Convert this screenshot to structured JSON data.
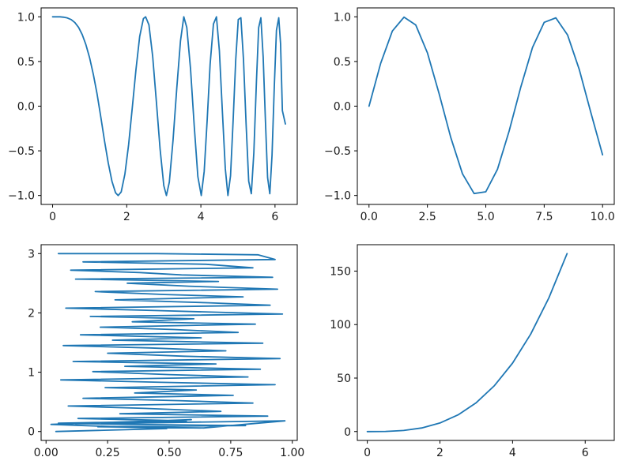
{
  "chart_data": [
    {
      "type": "line",
      "title": "",
      "xlabel": "",
      "ylabel": "",
      "grid": false,
      "xlim": [
        -0.31,
        6.6
      ],
      "ylim": [
        -1.1,
        1.1
      ],
      "xticks": [
        0,
        2,
        4,
        6
      ],
      "xtick_labels": [
        "0",
        "2",
        "4",
        "6"
      ],
      "yticks": [
        -1.0,
        -0.5,
        0.0,
        0.5,
        1.0
      ],
      "ytick_labels": [
        "−1.0",
        "−0.5",
        "0.0",
        "0.5",
        "1.0"
      ],
      "series": [
        {
          "color": "#1f77b4",
          "x": [
            0,
            0.1,
            0.2,
            0.3,
            0.4,
            0.5,
            0.6,
            0.7,
            0.8,
            0.9,
            1.0,
            1.1,
            1.2,
            1.3,
            1.4,
            1.5,
            1.6,
            1.7,
            1.77,
            1.85,
            1.95,
            2.05,
            2.15,
            2.25,
            2.35,
            2.45,
            2.51,
            2.6,
            2.7,
            2.8,
            2.9,
            3.0,
            3.07,
            3.15,
            3.25,
            3.35,
            3.45,
            3.54,
            3.62,
            3.72,
            3.82,
            3.92,
            4.01,
            4.09,
            4.17,
            4.25,
            4.34,
            4.42,
            4.5,
            4.58,
            4.66,
            4.73,
            4.8,
            4.87,
            4.94,
            5.01,
            5.08,
            5.15,
            5.22,
            5.29,
            5.36,
            5.43,
            5.5,
            5.56,
            5.62,
            5.68,
            5.74,
            5.8,
            5.86,
            5.92,
            5.98,
            6.04,
            6.1,
            6.15,
            6.2,
            6.28
          ],
          "y": [
            1.0,
            1.0,
            1.0,
            0.996,
            0.987,
            0.969,
            0.936,
            0.882,
            0.801,
            0.687,
            0.54,
            0.354,
            0.136,
            -0.12,
            -0.389,
            -0.634,
            -0.84,
            -0.97,
            -1.0,
            -0.96,
            -0.76,
            -0.43,
            -0.02,
            0.41,
            0.78,
            0.98,
            1.0,
            0.91,
            0.56,
            0.05,
            -0.48,
            -0.89,
            -1.0,
            -0.85,
            -0.38,
            0.2,
            0.73,
            1.0,
            0.88,
            0.42,
            -0.21,
            -0.79,
            -1.0,
            -0.73,
            -0.15,
            0.47,
            0.92,
            1.0,
            0.62,
            -0.06,
            -0.7,
            -1.0,
            -0.78,
            -0.16,
            0.52,
            0.97,
            0.99,
            0.52,
            -0.2,
            -0.84,
            -0.98,
            -0.52,
            0.28,
            0.88,
            0.99,
            0.55,
            -0.15,
            -0.8,
            -0.98,
            -0.55,
            0.2,
            0.85,
            0.99,
            0.7,
            -0.05,
            -0.2
          ]
        }
      ]
    },
    {
      "type": "line",
      "title": "",
      "xlabel": "",
      "ylabel": "",
      "grid": false,
      "xlim": [
        -0.5,
        10.5
      ],
      "ylim": [
        -1.1,
        1.1
      ],
      "xticks": [
        0,
        2.5,
        5.0,
        7.5,
        10.0
      ],
      "xtick_labels": [
        "0.0",
        "2.5",
        "5.0",
        "7.5",
        "10.0"
      ],
      "yticks": [
        -1.0,
        -0.5,
        0.0,
        0.5,
        1.0
      ],
      "ytick_labels": [
        "−1.0",
        "−0.5",
        "0.0",
        "0.5",
        "1.0"
      ],
      "series": [
        {
          "color": "#1f77b4",
          "x": [
            0,
            0.5,
            1.0,
            1.5,
            2.0,
            2.5,
            3.0,
            3.5,
            4.0,
            4.5,
            5.0,
            5.5,
            6.0,
            6.5,
            7.0,
            7.5,
            8.0,
            8.5,
            9.0,
            9.5,
            10.0
          ],
          "y": [
            0.0,
            0.479,
            0.841,
            0.997,
            0.909,
            0.598,
            0.141,
            -0.351,
            -0.757,
            -0.978,
            -0.959,
            -0.706,
            -0.279,
            0.215,
            0.657,
            0.938,
            0.989,
            0.798,
            0.412,
            -0.075,
            -0.544
          ]
        }
      ]
    },
    {
      "type": "line",
      "title": "",
      "xlabel": "",
      "ylabel": "",
      "grid": false,
      "xlim": [
        -0.02,
        1.02
      ],
      "ylim": [
        -0.15,
        3.15
      ],
      "xticks": [
        0.0,
        0.25,
        0.5,
        0.75,
        1.0
      ],
      "xtick_labels": [
        "0.00",
        "0.25",
        "0.50",
        "0.75",
        "1.00"
      ],
      "yticks": [
        0,
        1,
        2,
        3
      ],
      "ytick_labels": [
        "0",
        "1",
        "2",
        "3"
      ],
      "series": [
        {
          "color": "#1f77b4",
          "x": [
            0.05,
            0.45,
            0.86,
            0.93,
            0.15,
            0.65,
            0.84,
            0.1,
            0.38,
            0.55,
            0.92,
            0.12,
            0.7,
            0.33,
            0.58,
            0.94,
            0.2,
            0.48,
            0.8,
            0.28,
            0.66,
            0.91,
            0.08,
            0.44,
            0.96,
            0.18,
            0.6,
            0.35,
            0.85,
            0.22,
            0.52,
            0.78,
            0.14,
            0.63,
            0.27,
            0.88,
            0.07,
            0.42,
            0.73,
            0.25,
            0.56,
            0.95,
            0.11,
            0.69,
            0.32,
            0.87,
            0.19,
            0.5,
            0.82,
            0.06,
            0.47,
            0.93,
            0.24,
            0.61,
            0.36,
            0.76,
            0.15,
            0.54,
            0.84,
            0.09,
            0.4,
            0.71,
            0.3,
            0.9,
            0.13,
            0.57,
            0.05,
            0.34,
            0.81,
            0.21,
            0.64,
            0.97,
            0.12,
            0.59,
            0.02,
            0.49,
            0.04
          ],
          "y": [
            3.0,
            3.0,
            2.98,
            2.9,
            2.86,
            2.82,
            2.76,
            2.72,
            2.68,
            2.64,
            2.6,
            2.57,
            2.53,
            2.5,
            2.45,
            2.4,
            2.36,
            2.31,
            2.27,
            2.22,
            2.17,
            2.13,
            2.08,
            2.04,
            1.98,
            1.94,
            1.9,
            1.85,
            1.81,
            1.76,
            1.72,
            1.67,
            1.63,
            1.58,
            1.54,
            1.49,
            1.45,
            1.41,
            1.36,
            1.32,
            1.27,
            1.23,
            1.18,
            1.14,
            1.1,
            1.05,
            1.01,
            0.96,
            0.92,
            0.87,
            0.83,
            0.79,
            0.74,
            0.7,
            0.65,
            0.61,
            0.56,
            0.52,
            0.48,
            0.43,
            0.39,
            0.34,
            0.3,
            0.26,
            0.22,
            0.18,
            0.14,
            0.12,
            0.1,
            0.08,
            0.06,
            0.18,
            0.13,
            0.2,
            0.12,
            0.05,
            0.0
          ]
        }
      ]
    },
    {
      "type": "line",
      "title": "",
      "xlabel": "",
      "ylabel": "",
      "grid": false,
      "xlim": [
        -0.275,
        6.8
      ],
      "ylim": [
        -8.3,
        174.7
      ],
      "xticks": [
        0,
        2,
        4,
        6
      ],
      "xtick_labels": [
        "0",
        "2",
        "4",
        "6"
      ],
      "yticks": [
        0,
        50,
        100,
        150
      ],
      "ytick_labels": [
        "0",
        "50",
        "100",
        "150"
      ],
      "series": [
        {
          "color": "#1f77b4",
          "x": [
            0,
            0.5,
            1.0,
            1.5,
            2.0,
            2.5,
            3.0,
            3.5,
            4.0,
            4.5,
            5.0,
            5.5
          ],
          "y": [
            0,
            0.125,
            1.0,
            3.375,
            8.0,
            15.625,
            27.0,
            42.875,
            64.0,
            91.125,
            125.0,
            166.375
          ]
        }
      ]
    }
  ]
}
